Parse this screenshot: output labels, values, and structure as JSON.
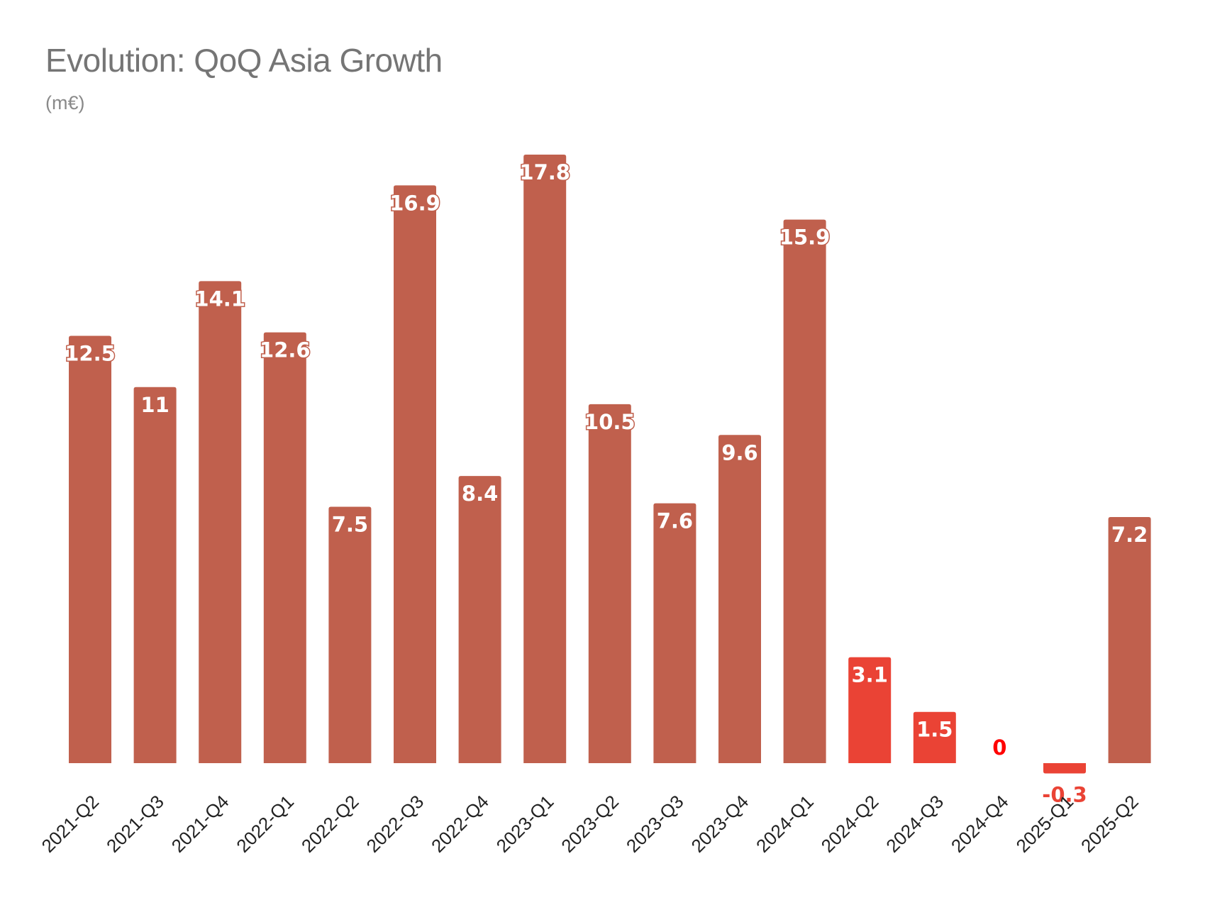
{
  "chart_data": {
    "type": "bar",
    "title": "Evolution: QoQ Asia Growth",
    "subtitle": "(m€)",
    "xlabel": "",
    "ylabel": "",
    "grid": false,
    "categories": [
      "2021-Q2",
      "2021-Q3",
      "2021-Q4",
      "2022-Q1",
      "2022-Q2",
      "2022-Q3",
      "2022-Q4",
      "2023-Q1",
      "2023-Q2",
      "2023-Q3",
      "2023-Q4",
      "2024-Q1",
      "2024-Q2",
      "2024-Q3",
      "2024-Q4",
      "2025-Q1",
      "2025-Q2"
    ],
    "values": [
      12.5,
      11,
      14.1,
      12.6,
      7.5,
      16.9,
      8.4,
      17.8,
      10.5,
      7.6,
      9.6,
      15.9,
      3.1,
      1.5,
      0,
      -0.3,
      7.2
    ],
    "value_labels": [
      "12.5",
      "11",
      "14.1",
      "12.6",
      "7.5",
      "16.9",
      "8.4",
      "17.8",
      "10.5",
      "7.6",
      "9.6",
      "15.9",
      "3.1",
      "1.5",
      "0",
      "-0.3",
      "7.2"
    ],
    "ylim": [
      -0.3,
      17.8
    ],
    "colors": {
      "default": "#c0604d",
      "highlight": "#ea4335",
      "zero_label": "#ff0000"
    },
    "highlighted_categories": [
      "2024-Q2",
      "2024-Q3",
      "2024-Q4",
      "2025-Q1"
    ]
  }
}
